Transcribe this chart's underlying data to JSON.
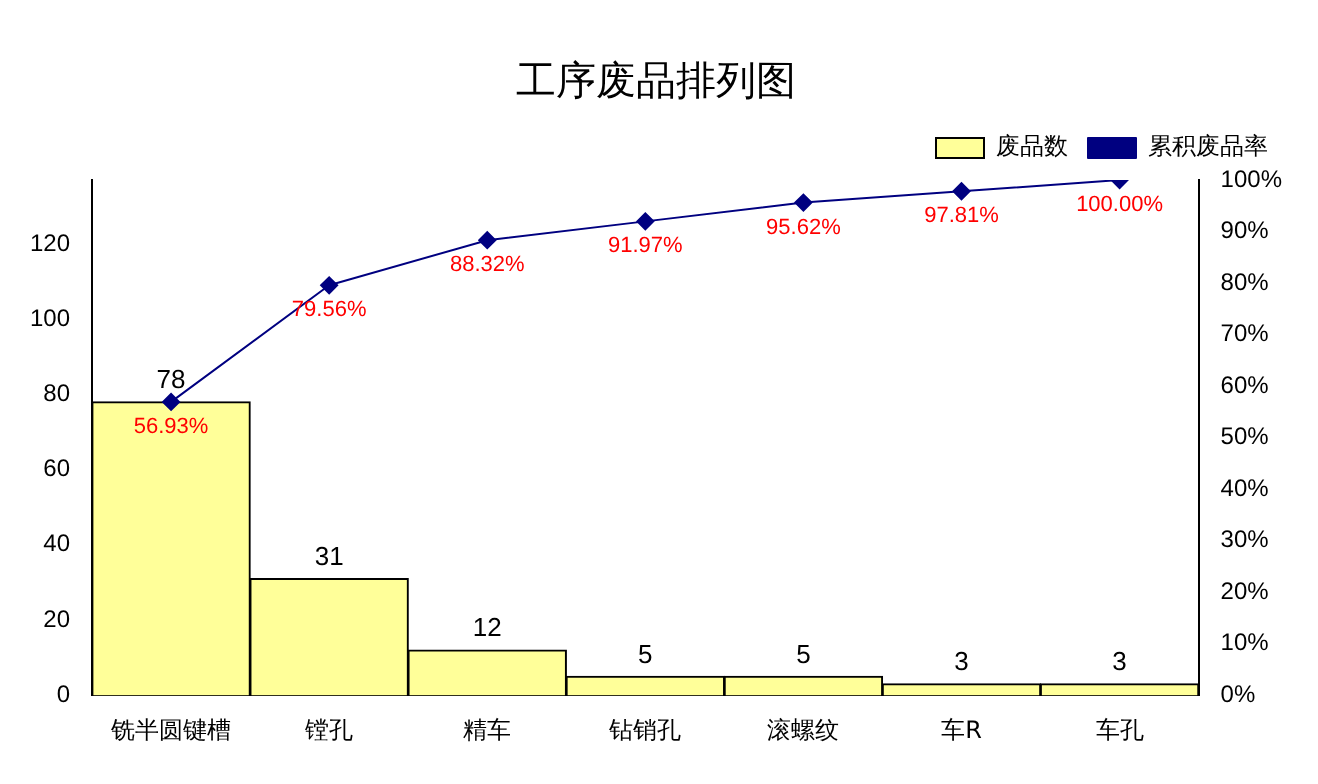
{
  "chart_data": {
    "type": "bar",
    "title": "工序废品排列图",
    "categories": [
      "铣半圆键槽",
      "镗孔",
      "精车",
      "钻销孔",
      "滚螺纹",
      "车R",
      "车孔"
    ],
    "series": [
      {
        "name": "废品数",
        "color": "#ffff99",
        "values": [
          78,
          31,
          12,
          5,
          5,
          3,
          3
        ],
        "value_labels": [
          "78",
          "31",
          "12",
          "5",
          "5",
          "3",
          "3"
        ]
      },
      {
        "name": "累积废品率",
        "type": "line",
        "axis": "y2",
        "color": "#000080",
        "marker": "diamond",
        "values": [
          56.93,
          79.56,
          88.32,
          91.97,
          95.62,
          97.81,
          100.0
        ],
        "value_labels": [
          "56.93%",
          "79.56%",
          "88.32%",
          "91.97%",
          "95.62%",
          "97.81%",
          "100.00%"
        ]
      }
    ],
    "ylim": [
      0,
      137
    ],
    "yticks": [
      0,
      20,
      40,
      60,
      80,
      100,
      120
    ],
    "y2lim": [
      0,
      100
    ],
    "y2ticks": [
      {
        "value": 0,
        "label": "0%"
      },
      {
        "value": 10,
        "label": "10%"
      },
      {
        "value": 20,
        "label": "20%"
      },
      {
        "value": 30,
        "label": "30%"
      },
      {
        "value": 40,
        "label": "40%"
      },
      {
        "value": 50,
        "label": "50%"
      },
      {
        "value": 60,
        "label": "60%"
      },
      {
        "value": 70,
        "label": "70%"
      },
      {
        "value": 80,
        "label": "80%"
      },
      {
        "value": 90,
        "label": "90%"
      },
      {
        "value": 100,
        "label": "100%"
      }
    ],
    "grid": false,
    "legend": "top right"
  }
}
